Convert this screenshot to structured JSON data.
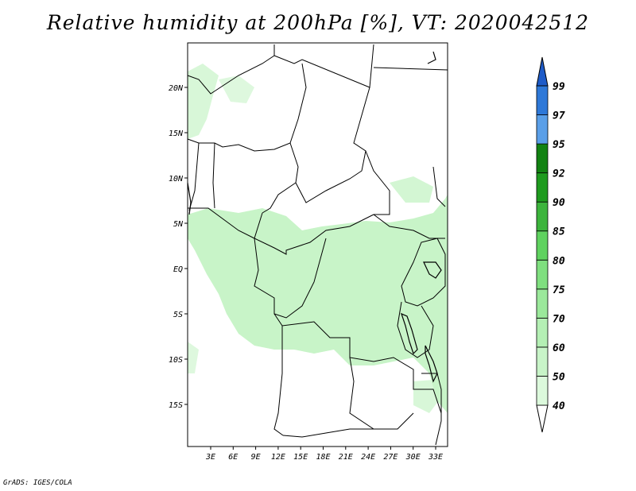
{
  "title": "Relative humidity at 200hPa [%], VT: 2020042512",
  "credit": "GrADS: IGES/COLA",
  "lat_labels": [
    "20N",
    "15N",
    "10N",
    "5N",
    "EQ",
    "5S",
    "10S",
    "15S"
  ],
  "lon_labels": [
    "3E",
    "6E",
    "9E",
    "12E",
    "15E",
    "18E",
    "21E",
    "24E",
    "27E",
    "30E",
    "33E"
  ],
  "colorbar": {
    "levels": [
      "40",
      "50",
      "60",
      "70",
      "75",
      "80",
      "85",
      "90",
      "92",
      "95",
      "97",
      "99"
    ],
    "colors": [
      "#f0fff0",
      "#dcf9dc",
      "#c8f4c8",
      "#b4efb4",
      "#9be89b",
      "#7fdf7f",
      "#5fd25f",
      "#3cb43c",
      "#1e9b1e",
      "#128212",
      "#5a9fe8",
      "#2e78d8",
      "#1e5bc8"
    ]
  },
  "shading_color": "#c8f4c8"
}
